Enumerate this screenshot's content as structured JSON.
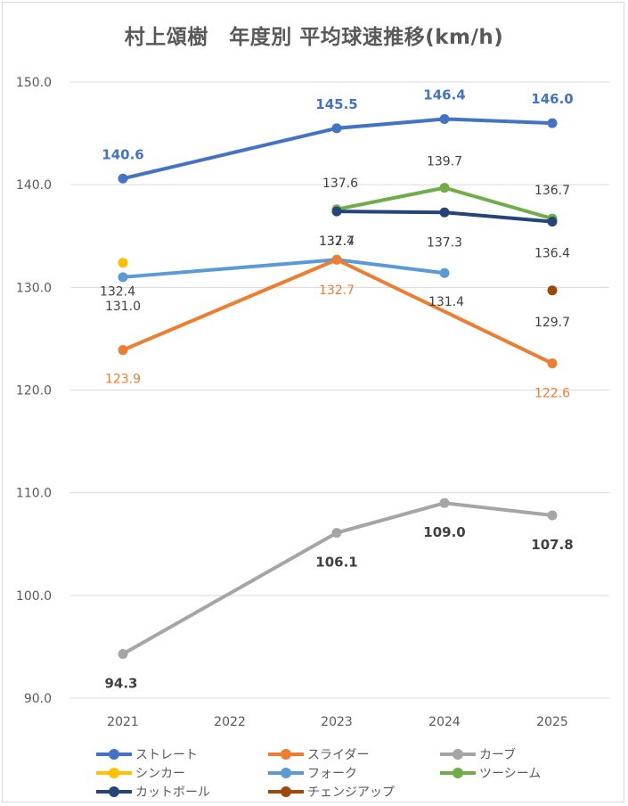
{
  "chart_data": {
    "type": "line",
    "title": "村上頌樹　年度別 平均球速推移(km/h)",
    "categories": [
      "2021",
      "2022",
      "2023",
      "2024",
      "2025"
    ],
    "ylim": [
      90,
      150
    ],
    "yticks": [
      "90.0",
      "100.0",
      "110.0",
      "120.0",
      "130.0",
      "140.0",
      "150.0"
    ],
    "grid": true,
    "legend_position": "bottom",
    "series": [
      {
        "name": "ストレート",
        "color": "#4472c4",
        "values": [
          140.6,
          null,
          145.5,
          146.4,
          146.0
        ],
        "labels": [
          "140.6",
          null,
          "145.5",
          "146.4",
          "146.0"
        ],
        "label_color": "#4472c4",
        "bold": true
      },
      {
        "name": "スライダー",
        "color": "#ed7d31",
        "values": [
          123.9,
          null,
          132.7,
          null,
          122.6
        ],
        "labels": [
          "123.9",
          null,
          "132.7",
          null,
          "122.6"
        ],
        "label_color": "#ed7d31",
        "bold": false
      },
      {
        "name": "カーブ",
        "color": "#a5a5a5",
        "values": [
          94.3,
          null,
          106.1,
          109.0,
          107.8
        ],
        "labels": [
          "94.3",
          null,
          "106.1",
          "109.0",
          "107.8"
        ],
        "label_color": "#404040",
        "bold": true
      },
      {
        "name": "シンカー",
        "color": "#ffc000",
        "values": [
          132.4,
          null,
          null,
          null,
          null
        ],
        "labels": [
          "132.4",
          null,
          null,
          null,
          null
        ],
        "label_color": "#404040",
        "bold": false
      },
      {
        "name": "フォーク",
        "color": "#5b9bd5",
        "values": [
          131.0,
          null,
          132.7,
          131.4,
          null
        ],
        "labels": [
          "131.0",
          null,
          "132.7",
          "131.4",
          null
        ],
        "label_color": "#404040",
        "bold": false
      },
      {
        "name": "ツーシーム",
        "color": "#70ad47",
        "values": [
          null,
          null,
          137.6,
          139.7,
          136.7
        ],
        "labels": [
          null,
          null,
          "137.6",
          "139.7",
          "136.7"
        ],
        "label_color": "#404040",
        "bold": false
      },
      {
        "name": "カットボール",
        "color": "#264478",
        "values": [
          null,
          null,
          137.4,
          137.3,
          136.4
        ],
        "labels": [
          null,
          null,
          "137.4",
          "137.3",
          "136.4"
        ],
        "label_color": "#404040",
        "bold": false
      },
      {
        "name": "チェンジアップ",
        "color": "#9e480e",
        "values": [
          null,
          null,
          null,
          null,
          129.7
        ],
        "labels": [
          null,
          null,
          null,
          null,
          "129.7"
        ],
        "label_color": "#404040",
        "bold": false
      }
    ]
  }
}
